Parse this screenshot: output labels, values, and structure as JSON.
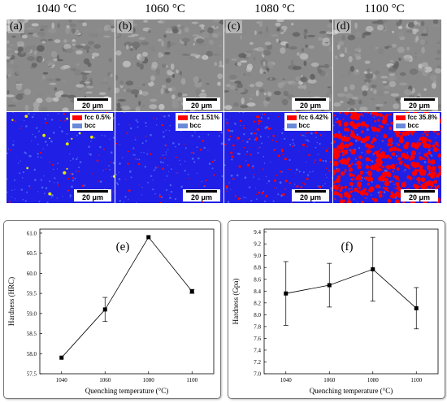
{
  "temperatures": [
    "1040 °C",
    "1060 °C",
    "1080 °C",
    "1100 °C"
  ],
  "sem_panels": [
    {
      "tag": "(a)",
      "scale": "20 μm"
    },
    {
      "tag": "(b)",
      "scale": "20 μm"
    },
    {
      "tag": "(c)",
      "scale": "20 μm"
    },
    {
      "tag": "(d)",
      "scale": "20 μm"
    }
  ],
  "ebsd_panels": [
    {
      "fcc_label": "fcc 0.5%",
      "bcc_label": "bcc",
      "scale": "20 μm",
      "fcc_fraction": 0.005
    },
    {
      "fcc_label": "fcc 1.51%",
      "bcc_label": "bcc",
      "scale": "20 μm",
      "fcc_fraction": 0.0151
    },
    {
      "fcc_label": "fcc 6.42%",
      "bcc_label": "bcc",
      "scale": "20 μm",
      "fcc_fraction": 0.0642
    },
    {
      "fcc_label": "fcc 35.8%",
      "bcc_label": "bcc",
      "scale": "20 μm",
      "fcc_fraction": 0.358
    }
  ],
  "colors": {
    "fcc": "#ff0000",
    "bcc": "#1f1fe6",
    "legend_bcc": "#6a8ad8"
  },
  "chart_data": [
    {
      "type": "line",
      "panel_label": "(e)",
      "x": [
        1040,
        1060,
        1080,
        1100
      ],
      "y": [
        57.9,
        59.1,
        60.9,
        59.55
      ],
      "yerr": [
        0,
        0.3,
        0,
        0.05
      ],
      "xlabel": "Quenching temperature (°C)",
      "ylabel": "Hardness (HRC)",
      "ylim": [
        57.5,
        61.1
      ],
      "yticks": [
        "57.5",
        "58.0",
        "58.5",
        "59.0",
        "59.5",
        "60.0",
        "60.5",
        "61.0"
      ],
      "ytick_values": [
        57.5,
        58.0,
        58.5,
        59.0,
        59.5,
        60.0,
        60.5,
        61.0
      ],
      "xticks": [
        "1040",
        "1060",
        "1080",
        "1100"
      ],
      "xlim": [
        1030,
        1110
      ]
    },
    {
      "type": "line",
      "panel_label": "(f)",
      "x": [
        1040,
        1060,
        1080,
        1100
      ],
      "y": [
        8.36,
        8.5,
        8.77,
        8.11
      ],
      "yerr": [
        0.54,
        0.37,
        0.54,
        0.35
      ],
      "xlabel": "Quenching temperature (°C)",
      "ylabel": "Hardness (Gpa)",
      "ylim": [
        7.0,
        9.45
      ],
      "yticks": [
        "7.0",
        "7.2",
        "7.4",
        "7.6",
        "7.8",
        "8.0",
        "8.2",
        "8.4",
        "8.6",
        "8.8",
        "9.0",
        "9.2",
        "9.4"
      ],
      "ytick_values": [
        7.0,
        7.2,
        7.4,
        7.6,
        7.8,
        8.0,
        8.2,
        8.4,
        8.6,
        8.8,
        9.0,
        9.2,
        9.4
      ],
      "xticks": [
        "1040",
        "1060",
        "1080",
        "1100"
      ],
      "xlim": [
        1030,
        1110
      ]
    }
  ]
}
